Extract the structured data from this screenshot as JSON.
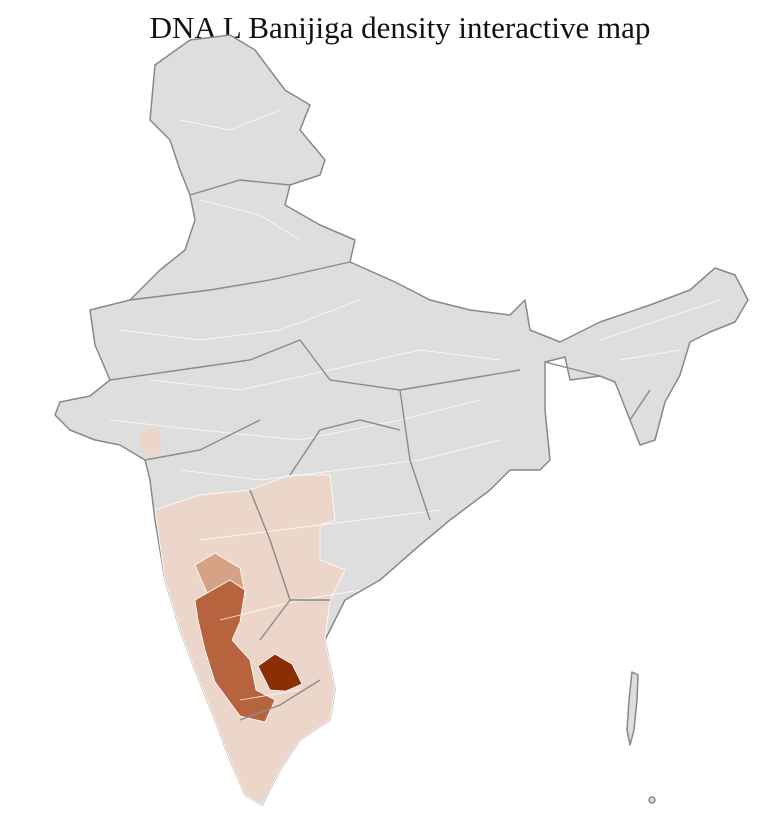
{
  "title": "DNA L Banijiga density interactive map",
  "map": {
    "region": "India districts",
    "colors": {
      "no_data": "#dedede",
      "border": "#888888",
      "district_border": "#ffffff",
      "level_1": "#ecd6c9",
      "level_2": "#d6a285",
      "level_3": "#b5643e",
      "level_4": "#8b2e06"
    }
  }
}
